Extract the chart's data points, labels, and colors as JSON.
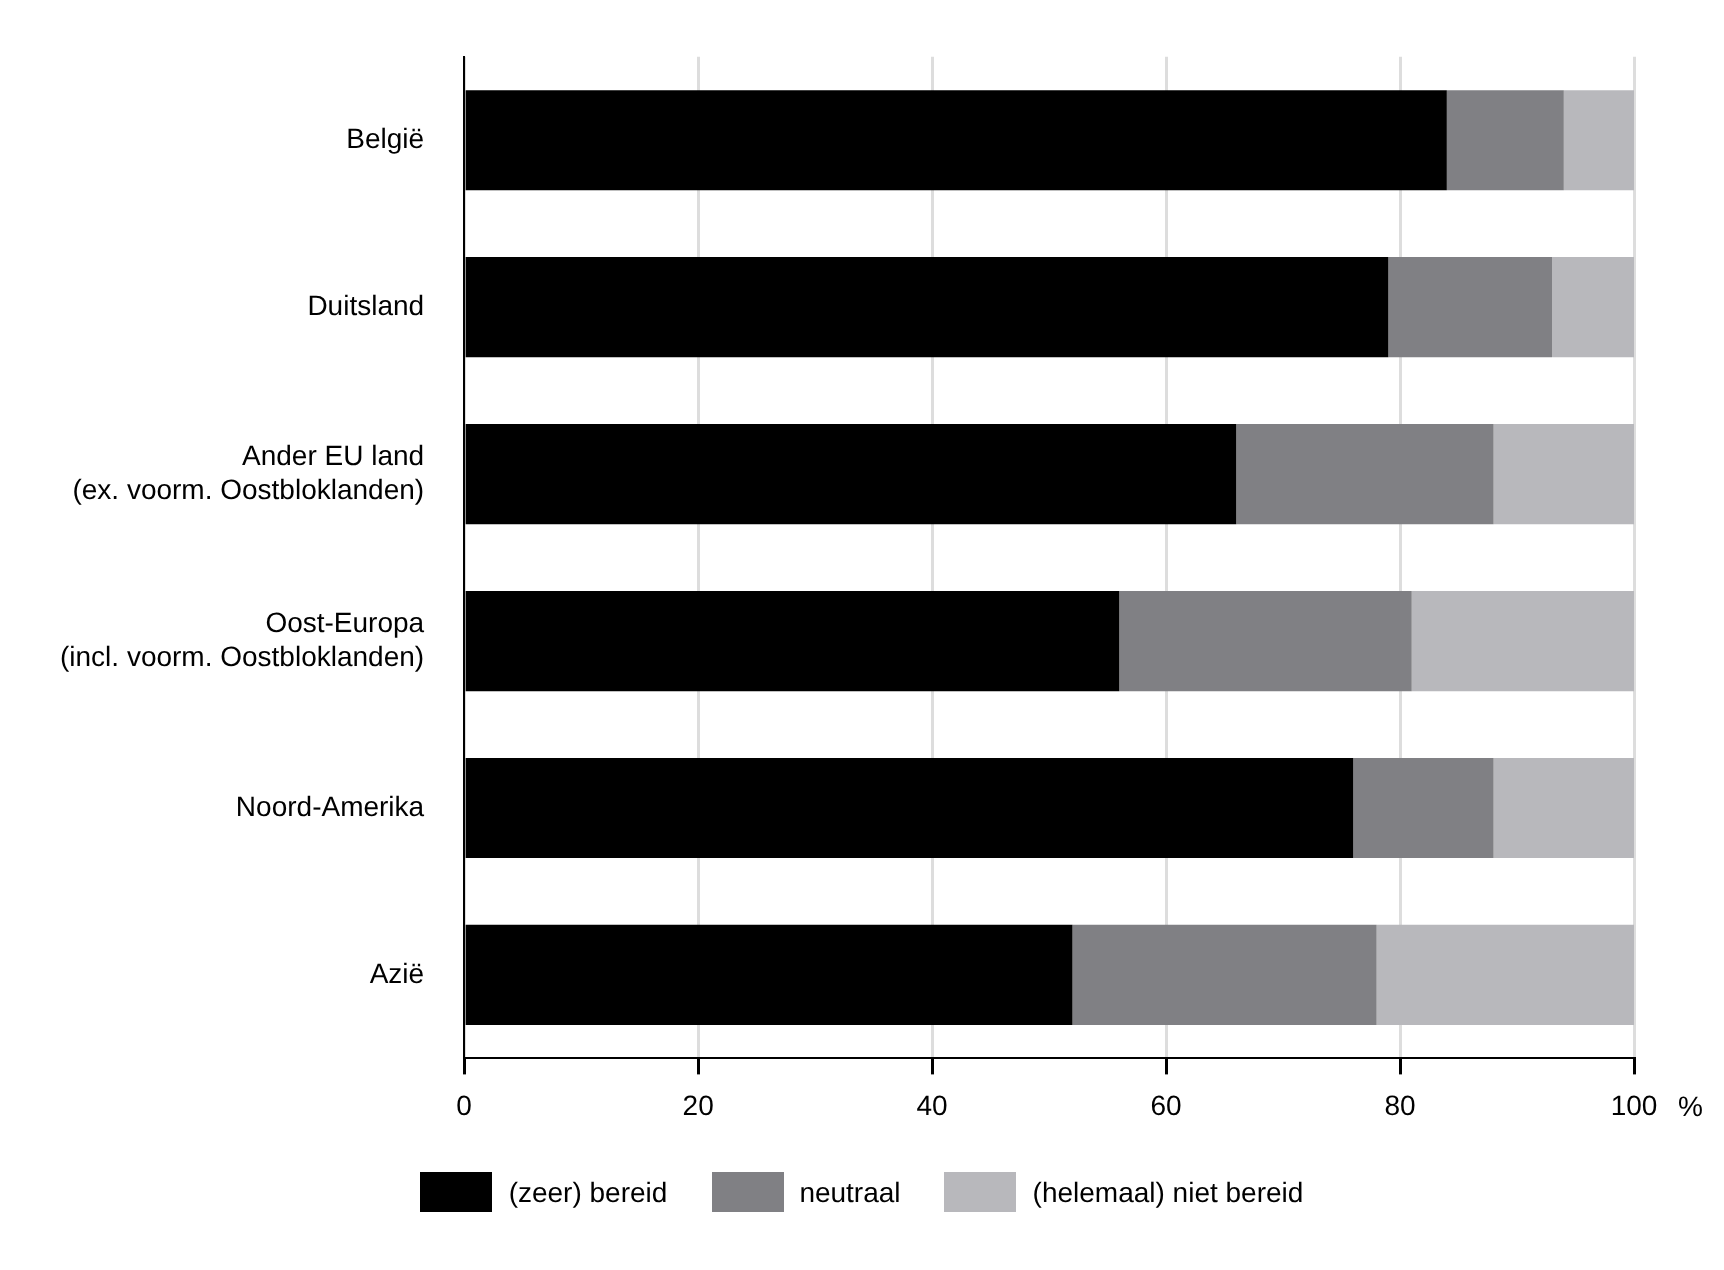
{
  "chart_data": {
    "type": "bar",
    "orientation": "horizontal",
    "stacked": true,
    "xlabel": "%",
    "categories": [
      "België",
      "Duitsland",
      "Ander EU land\n(ex. voorm. Oostbloklanden)",
      "Oost-Europa\n(incl. voorm. Oostbloklanden)",
      "Noord-Amerika",
      "Azië"
    ],
    "series": [
      {
        "name": "(zeer) bereid",
        "color": "#000000",
        "values": [
          84,
          79,
          66,
          56,
          76,
          52
        ]
      },
      {
        "name": "neutraal",
        "color": "#808084",
        "values": [
          10,
          14,
          22,
          25,
          12,
          26
        ]
      },
      {
        "name": "(helemaal) niet bereid",
        "color": "#b8b8bc",
        "values": [
          6,
          7,
          12,
          19,
          12,
          22
        ]
      }
    ],
    "xlim": [
      0,
      100
    ],
    "xticks": [
      0,
      20,
      40,
      60,
      80,
      100
    ],
    "grid": "x",
    "legend": "bottom"
  }
}
